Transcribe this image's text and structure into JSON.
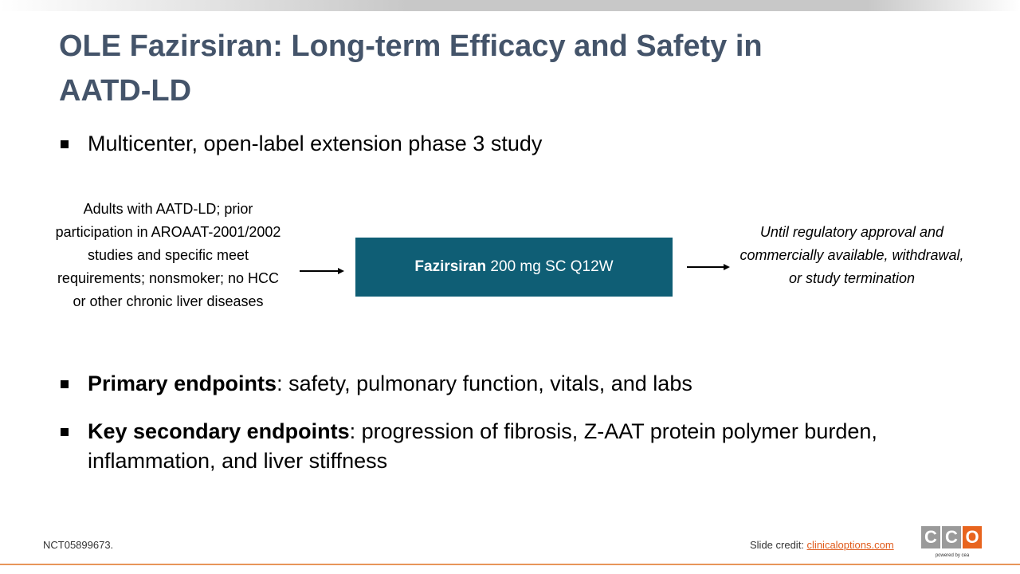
{
  "title": "OLE Fazirsiran: Long-term Efficacy and Safety in AATD-LD",
  "bullets_top": [
    "Multicenter, open-label extension phase 3 study"
  ],
  "diagram": {
    "left": "Adults with AATD-LD; prior participation in AROAAT-2001/2002 studies and specific meet requirements; nonsmoker; no HCC or other chronic liver diseases",
    "box": {
      "bold": "Fazirsiran",
      "text": " 200 mg SC Q12W"
    },
    "right": "Until regulatory approval and commercially available, withdrawal, or study termination"
  },
  "bullets_bottom": [
    {
      "bold": "Primary endpoints",
      "text": ": safety, pulmonary function, vitals, and labs"
    },
    {
      "bold": "Key secondary endpoints",
      "text": ": progression of fibrosis, Z-AAT protein polymer burden, inflammation, and liver stiffness"
    }
  ],
  "footer": {
    "reference": "NCT05899673.",
    "credit": "Slide credit: ",
    "link": "clinicaloptions.com"
  },
  "logo": {
    "letters": [
      "C",
      "C",
      "O"
    ],
    "tagline": "powered by cea"
  }
}
